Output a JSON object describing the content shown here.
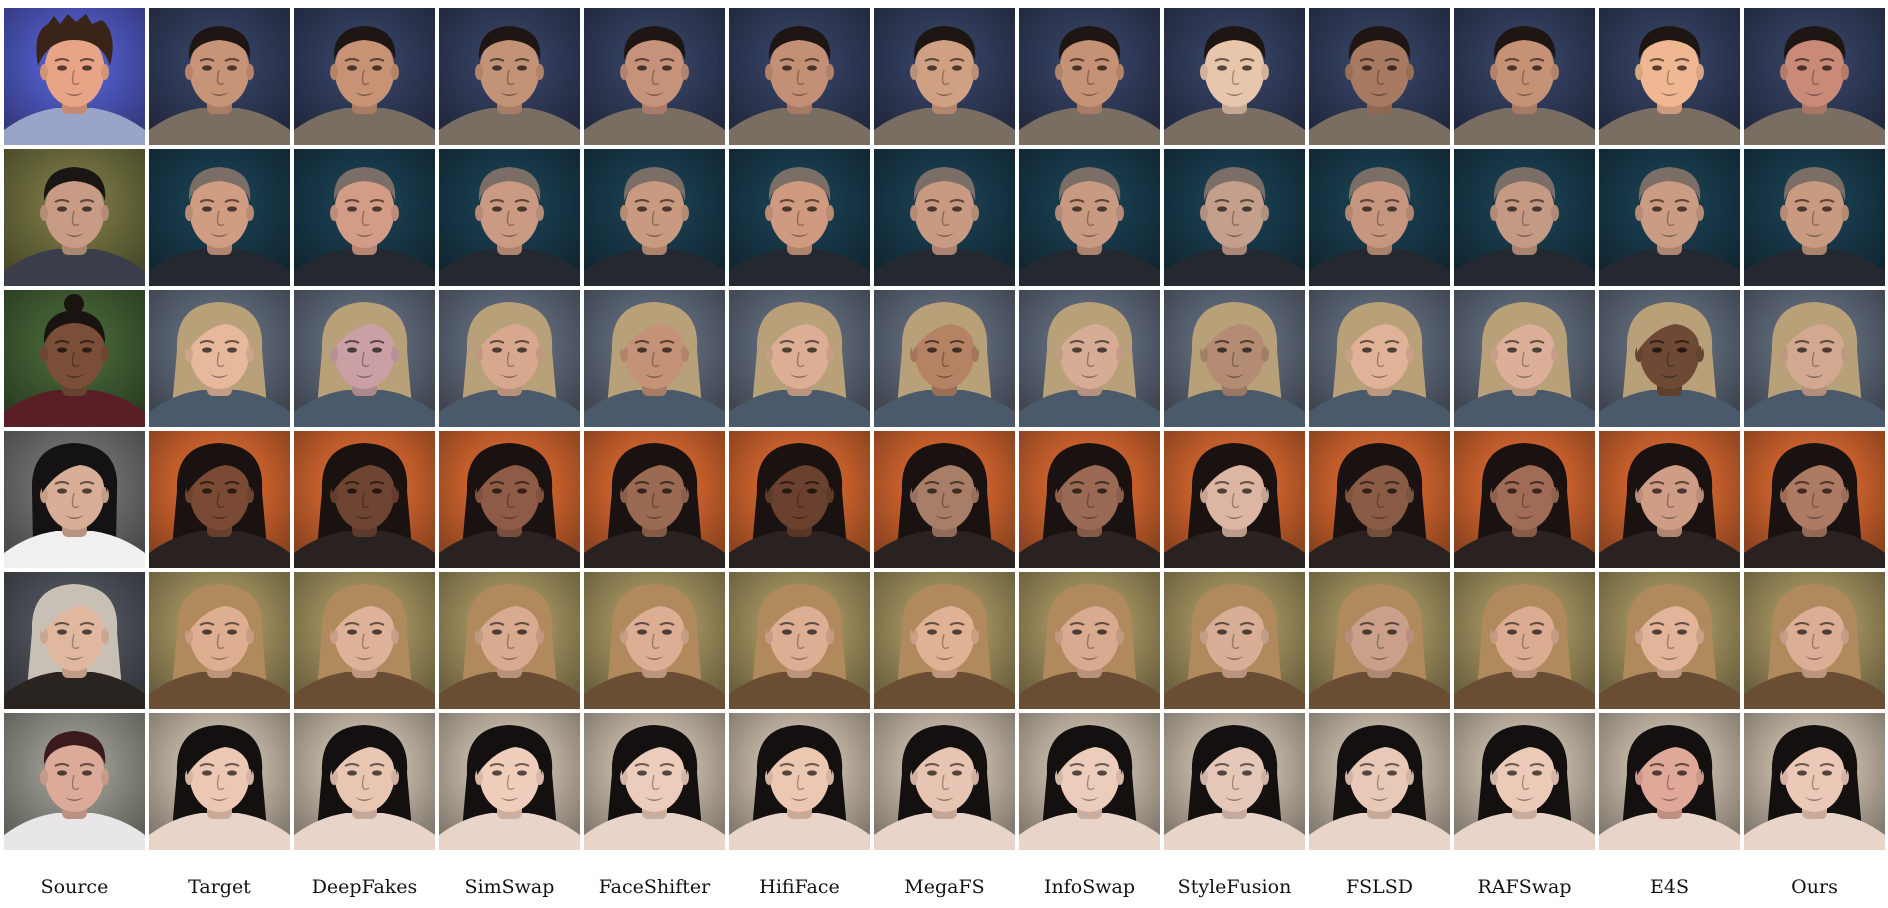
{
  "columns": [
    {
      "label": "Source"
    },
    {
      "label": "Target"
    },
    {
      "label": "DeepFakes"
    },
    {
      "label": "SimSwap"
    },
    {
      "label": "FaceShifter"
    },
    {
      "label": "HifiFace"
    },
    {
      "label": "MegaFS"
    },
    {
      "label": "InfoSwap"
    },
    {
      "label": "StyleFusion"
    },
    {
      "label": "FSLSD"
    },
    {
      "label": "RAFSwap"
    },
    {
      "label": "E4S"
    },
    {
      "label": "Ours"
    }
  ],
  "rows": [
    {
      "source": {
        "bg": "#4a55b8",
        "skin": "#e8a486",
        "hair": "#3a2418",
        "hair_style": "messy",
        "cloth": "#9aa4c8"
      },
      "target": {
        "bg": "#2f3a58",
        "skin": "#c89478",
        "hair": "#1e1612",
        "hair_style": "short",
        "cloth": "#7a6e62"
      },
      "results": [
        "#c89274",
        "#c39377",
        "#c6927a",
        "#c39076",
        "#d0a083",
        "#c59276",
        "#e8c6ac",
        "#a87a62",
        "#c69276",
        "#f0b892",
        "#c98a78"
      ]
    },
    {
      "source": {
        "bg": "#6a6a3c",
        "skin": "#c89c84",
        "hair": "#1a1614",
        "hair_style": "short",
        "cloth": "#3a3e4a"
      },
      "target": {
        "bg": "#173848",
        "skin": "#d09c82",
        "hair": "#7a6e66",
        "hair_style": "short",
        "cloth": "#242830"
      },
      "results": [
        "#d29c86",
        "#cb9a82",
        "#c89a80",
        "#cf9a80",
        "#c89a82",
        "#c89a82",
        "#c4a08c",
        "#c6967e",
        "#c49a84",
        "#cb9c84",
        "#c89a80"
      ]
    },
    {
      "source": {
        "bg": "#3e5a30",
        "skin": "#7a4e38",
        "hair": "#1a1410",
        "hair_style": "bun",
        "cloth": "#5a1e26"
      },
      "target": {
        "bg": "#5a6474",
        "skin": "#e6b89c",
        "hair": "#b8a078",
        "hair_style": "wavy",
        "cloth": "#4a5a6a"
      },
      "results": [
        "#caa0a4",
        "#d8a88e",
        "#c49276",
        "#dcae94",
        "#b68264",
        "#d6ac94",
        "#b48c74",
        "#e0b298",
        "#dcb098",
        "#6e4a36",
        "#d2a890"
      ]
    },
    {
      "source": {
        "bg": "#6a6a6a",
        "skin": "#d8ae96",
        "hair": "#141212",
        "hair_style": "bob",
        "cloth": "#f0f0f0"
      },
      "target": {
        "bg": "#c8602c",
        "skin": "#7a4a34",
        "hair": "#1a1210",
        "hair_style": "long",
        "cloth": "#2a2220"
      },
      "results": [
        "#6e4432",
        "#8e5c46",
        "#9a6a52",
        "#6a402e",
        "#a87e68",
        "#9a6a54",
        "#dcb6a2",
        "#8a5c46",
        "#a06c56",
        "#cf9c86",
        "#ad7a64"
      ]
    },
    {
      "source": {
        "bg": "#4a4e56",
        "skin": "#e0b8a0",
        "hair": "#c8c0b4",
        "hair_style": "long",
        "cloth": "#2a2420"
      },
      "target": {
        "bg": "#9a8a5a",
        "skin": "#deae90",
        "hair": "#b08a5c",
        "hair_style": "long",
        "cloth": "#6a4e34"
      },
      "results": [
        "#deb298",
        "#d8aa90",
        "#dcae94",
        "#dcae94",
        "#e0b294",
        "#d8aa90",
        "#d8ae96",
        "#caa08a",
        "#dcac92",
        "#e2b49a",
        "#dcae96"
      ]
    },
    {
      "source": {
        "bg": "#8a8a82",
        "skin": "#dcaa98",
        "hair": "#3a1a1a",
        "hair_style": "short",
        "cloth": "#e8e6e8"
      },
      "target": {
        "bg": "#bcb0a0",
        "skin": "#ecc8b4",
        "hair": "#141010",
        "hair_style": "long",
        "cloth": "#e8d4c8"
      },
      "results": [
        "#e8c6b2",
        "#f0cebc",
        "#ecccba",
        "#ecc8b2",
        "#e8c4b2",
        "#ecccba",
        "#e6c8b8",
        "#e8c8b6",
        "#eccab8",
        "#e0a898",
        "#ecc8b6"
      ]
    }
  ]
}
